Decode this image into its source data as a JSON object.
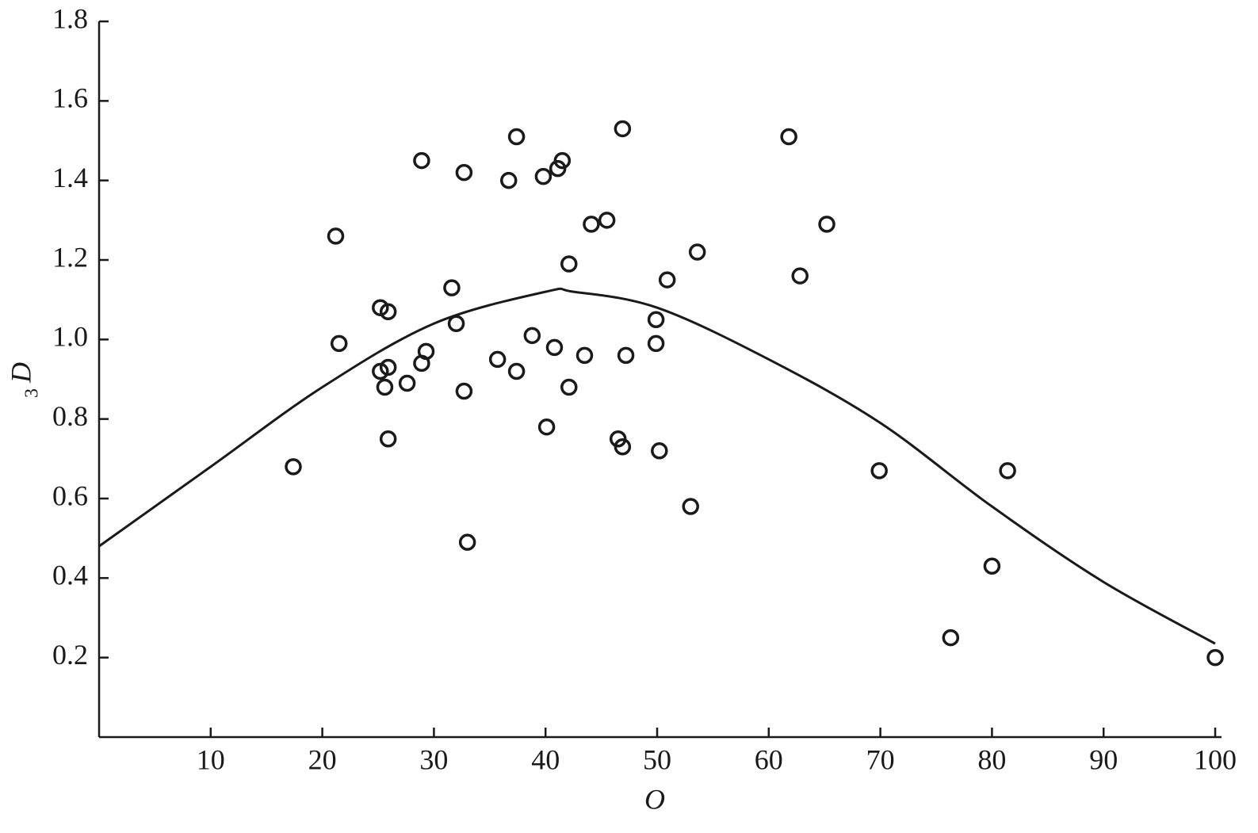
{
  "chart_data": {
    "type": "scatter",
    "x_label": "O",
    "y_label": "D",
    "y_label_sub": "3",
    "xlim": [
      0,
      100
    ],
    "ylim": [
      0,
      1.8
    ],
    "xticks": [
      10,
      20,
      30,
      40,
      50,
      60,
      70,
      80,
      90,
      100
    ],
    "yticks": [
      0.2,
      0.4,
      0.6,
      0.8,
      {
        "value": 1,
        "label": "1.0"
      },
      1.2,
      1.4,
      1.6,
      1.8
    ],
    "color": "#1a1a1a",
    "points": {
      "x": [
        17.4,
        21.2,
        21.5,
        25.2,
        25.9,
        25.2,
        25.9,
        25.6,
        25.9,
        27.6,
        28.9,
        29.3,
        28.9,
        31.6,
        32.0,
        32.7,
        32.7,
        33.0,
        35.7,
        36.7,
        37.4,
        37.4,
        38.8,
        39.8,
        40.1,
        40.8,
        41.1,
        41.5,
        42.1,
        42.1,
        43.5,
        44.1,
        45.5,
        46.5,
        46.9,
        46.9,
        47.2,
        49.9,
        49.9,
        50.2,
        50.9,
        53.0,
        53.6,
        61.8,
        62.8,
        65.2,
        69.9,
        76.3,
        80.0,
        81.4,
        100
      ],
      "values": [
        0.68,
        1.26,
        0.99,
        1.08,
        1.07,
        0.92,
        0.93,
        0.88,
        0.75,
        0.89,
        1.45,
        0.97,
        0.94,
        1.13,
        1.04,
        1.42,
        0.87,
        0.49,
        0.95,
        1.4,
        1.51,
        0.92,
        1.01,
        1.41,
        0.78,
        0.98,
        1.43,
        1.45,
        1.19,
        0.88,
        0.96,
        1.29,
        1.3,
        0.75,
        1.53,
        0.73,
        0.96,
        1.05,
        0.99,
        0.72,
        1.15,
        0.58,
        1.22,
        1.51,
        1.16,
        1.29,
        0.67,
        0.25,
        0.43,
        0.67,
        0.2
      ]
    },
    "curve": {
      "x": [
        0,
        10,
        20,
        30,
        40,
        42.5,
        50,
        60,
        70,
        80,
        90,
        100
      ],
      "values": [
        0.48,
        0.68,
        0.88,
        1.04,
        1.12,
        1.12,
        1.08,
        0.95,
        0.79,
        0.58,
        0.39,
        0.235
      ]
    }
  }
}
